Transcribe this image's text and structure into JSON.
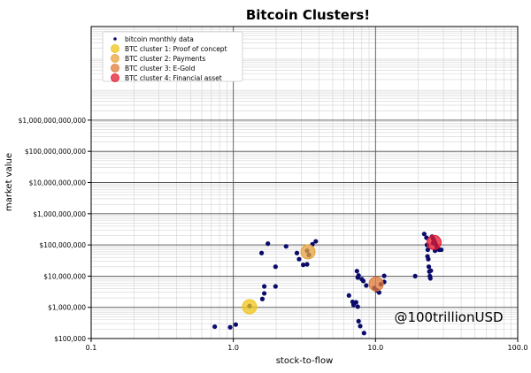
{
  "chart_data": {
    "type": "scatter",
    "title": "Bitcoin Clusters!",
    "xlabel": "stock-to-flow",
    "ylabel": "market value",
    "xscale": "log",
    "yscale": "log",
    "xlim": [
      0.1,
      100
    ],
    "ylim": [
      100,
      1000000000000
    ],
    "grid": true,
    "legend_position": "top-left",
    "x_ticks": [
      {
        "value": 0.1,
        "label": "0.1"
      },
      {
        "value": 1,
        "label": "1.0"
      },
      {
        "value": 10,
        "label": "10.0"
      },
      {
        "value": 100,
        "label": "100.0"
      }
    ],
    "y_ticks": [
      {
        "value": 100,
        "label": "$100,000"
      },
      {
        "value": 1000,
        "label": "$1,000,000"
      },
      {
        "value": 10000,
        "label": "$10,000,000"
      },
      {
        "value": 100000,
        "label": "$100,000,000"
      },
      {
        "value": 1000000,
        "label": "$1,000,000,000"
      },
      {
        "value": 10000000,
        "label": "$10,000,000,000"
      },
      {
        "value": 100000000,
        "label": "$100,000,000,000"
      },
      {
        "value": 1000000000,
        "label": "$1,000,000,000,000"
      }
    ],
    "series": [
      {
        "name": "bitcoin monthly data",
        "color": "#0b0b6b",
        "marker": "dot",
        "points": [
          [
            0.74,
            240
          ],
          [
            0.95,
            230
          ],
          [
            1.04,
            280
          ],
          [
            1.3,
            1100
          ],
          [
            1.6,
            1850
          ],
          [
            1.65,
            2800
          ],
          [
            1.65,
            4700
          ],
          [
            1.98,
            4700
          ],
          [
            1.98,
            20000
          ],
          [
            1.58,
            55000
          ],
          [
            1.75,
            110000
          ],
          [
            2.35,
            90000
          ],
          [
            2.8,
            55000
          ],
          [
            2.9,
            35000
          ],
          [
            3.1,
            23000
          ],
          [
            3.3,
            24000
          ],
          [
            3.4,
            48000
          ],
          [
            3.6,
            105000
          ],
          [
            3.8,
            130000
          ],
          [
            3.3,
            65000
          ],
          [
            6.5,
            2400
          ],
          [
            6.9,
            1500
          ],
          [
            7.0,
            1200
          ],
          [
            7.3,
            1450
          ],
          [
            7.5,
            1050
          ],
          [
            7.6,
            360
          ],
          [
            7.8,
            250
          ],
          [
            7.4,
            14500
          ],
          [
            7.5,
            9000
          ],
          [
            7.6,
            10500
          ],
          [
            8.0,
            8000
          ],
          [
            8.2,
            7000
          ],
          [
            8.3,
            150
          ],
          [
            8.6,
            5000
          ],
          [
            9.8,
            4200
          ],
          [
            10.2,
            3500
          ],
          [
            10.6,
            3000
          ],
          [
            11.5,
            6500
          ],
          [
            11.5,
            10200
          ],
          [
            10.9,
            5500
          ],
          [
            19,
            10000
          ],
          [
            22,
            225000
          ],
          [
            22.8,
            170000
          ],
          [
            23,
            100000
          ],
          [
            23.3,
            70000
          ],
          [
            23.5,
            35000
          ],
          [
            23.7,
            20000
          ],
          [
            23.9,
            14000
          ],
          [
            24.1,
            10000
          ],
          [
            24.3,
            8500
          ],
          [
            24.5,
            15000
          ],
          [
            25,
            185000
          ],
          [
            25.5,
            155000
          ],
          [
            26,
            130000
          ],
          [
            26.5,
            105000
          ],
          [
            27,
            85000
          ],
          [
            27.5,
            78000
          ],
          [
            28,
            70000
          ],
          [
            29,
            70000
          ],
          [
            23.2,
            43000
          ],
          [
            26.2,
            65000
          ],
          [
            25.4,
            115000
          ]
        ]
      },
      {
        "name": "BTC cluster 1: Proof of concept",
        "color": "#f0c419",
        "marker": "circle",
        "points": [
          [
            1.3,
            1050
          ]
        ]
      },
      {
        "name": "BTC cluster 2: Payments",
        "color": "#e8a33d",
        "marker": "circle",
        "points": [
          [
            3.35,
            60000
          ]
        ]
      },
      {
        "name": "BTC cluster 3: E-Gold",
        "color": "#e07a3a",
        "marker": "circle",
        "points": [
          [
            10.1,
            5600
          ]
        ]
      },
      {
        "name": "BTC cluster 4: Financial asset",
        "color": "#e3192f",
        "marker": "circle",
        "points": [
          [
            25.8,
            120000
          ]
        ]
      }
    ],
    "annotation": "@100trillionUSD"
  }
}
